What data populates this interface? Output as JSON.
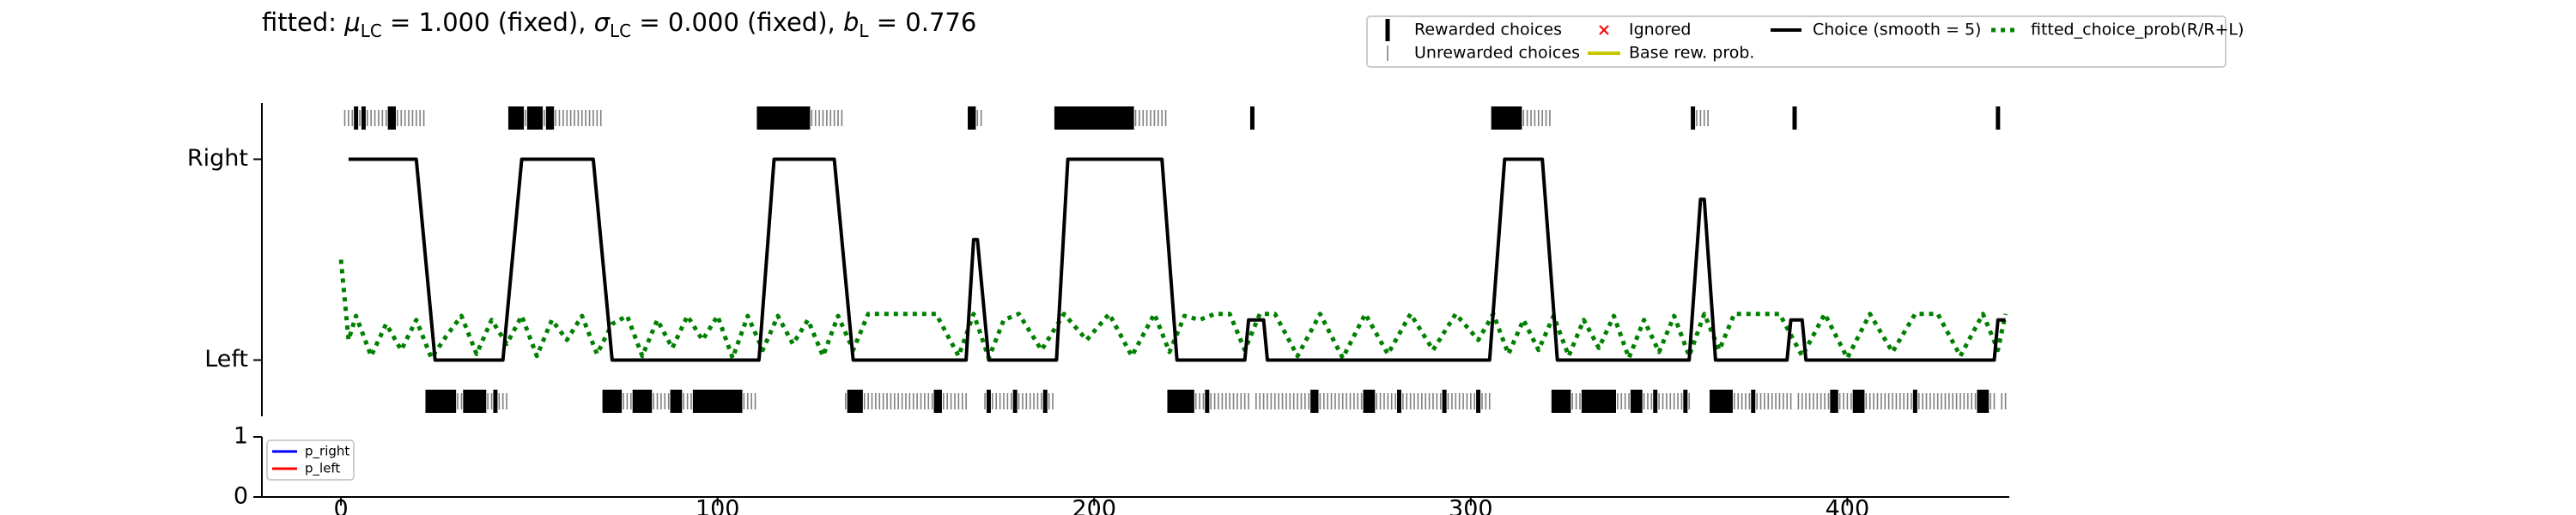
{
  "chart_data": [
    {
      "type": "choice-history",
      "title_parts": [
        "fitted: ",
        "μ",
        "LC",
        " = 1.000 (fixed), ",
        "σ",
        "LC",
        " = 0.000 (fixed), ",
        "b",
        "L",
        " = 0.776"
      ],
      "xlim": [
        -21,
        443
      ],
      "ylim": [
        -0.28,
        1.28
      ],
      "yticks": [
        {
          "value": 0,
          "label": "Left"
        },
        {
          "value": 1,
          "label": "Right"
        }
      ],
      "legend": "top",
      "series": [
        {
          "name": "Rewarded choices",
          "color": "#000000",
          "right": [
            4,
            6,
            13,
            14,
            45,
            46,
            47,
            48,
            50,
            51,
            52,
            53,
            55,
            56,
            111,
            112,
            113,
            114,
            115,
            116,
            117,
            118,
            119,
            120,
            121,
            122,
            123,
            124,
            167,
            168,
            190,
            191,
            192,
            193,
            194,
            195,
            196,
            197,
            198,
            199,
            200,
            201,
            202,
            203,
            204,
            205,
            206,
            207,
            208,
            209,
            210,
            242,
            306,
            307,
            308,
            309,
            310,
            311,
            312,
            313,
            359,
            386,
            440
          ],
          "left": [
            23,
            24,
            25,
            26,
            27,
            28,
            29,
            30,
            33,
            34,
            35,
            36,
            37,
            38,
            41,
            70,
            71,
            72,
            73,
            74,
            78,
            79,
            80,
            81,
            82,
            88,
            89,
            90,
            94,
            95,
            96,
            97,
            98,
            99,
            100,
            101,
            102,
            103,
            104,
            105,
            106,
            135,
            136,
            137,
            138,
            158,
            159,
            172,
            179,
            187,
            220,
            221,
            222,
            223,
            224,
            225,
            226,
            230,
            258,
            259,
            272,
            273,
            274,
            281,
            293,
            302,
            322,
            323,
            324,
            325,
            326,
            330,
            331,
            332,
            333,
            334,
            335,
            336,
            337,
            338,
            343,
            344,
            345,
            349,
            357,
            364,
            365,
            366,
            367,
            368,
            369,
            375,
            396,
            397,
            402,
            403,
            404,
            418,
            435,
            436,
            437
          ]
        },
        {
          "name": "Unrewarded choices",
          "color": "#808080",
          "right": [
            1,
            2,
            3,
            5,
            7,
            8,
            9,
            10,
            11,
            12,
            15,
            16,
            17,
            18,
            19,
            20,
            21,
            22,
            49,
            54,
            57,
            58,
            59,
            60,
            61,
            62,
            63,
            64,
            65,
            66,
            67,
            68,
            69,
            125,
            126,
            127,
            128,
            129,
            130,
            131,
            132,
            133,
            169,
            170,
            211,
            212,
            213,
            214,
            215,
            216,
            217,
            218,
            219,
            314,
            315,
            316,
            317,
            318,
            319,
            320,
            321,
            360,
            361,
            362,
            363
          ],
          "left": [
            31,
            32,
            39,
            40,
            42,
            43,
            44,
            75,
            76,
            77,
            83,
            84,
            85,
            86,
            87,
            91,
            92,
            93,
            107,
            108,
            109,
            110,
            134,
            139,
            140,
            141,
            142,
            143,
            144,
            145,
            146,
            147,
            148,
            149,
            150,
            151,
            152,
            153,
            154,
            155,
            156,
            157,
            160,
            161,
            162,
            163,
            164,
            165,
            166,
            171,
            173,
            174,
            175,
            176,
            177,
            178,
            180,
            181,
            182,
            183,
            184,
            185,
            186,
            188,
            189,
            227,
            228,
            229,
            231,
            232,
            233,
            234,
            235,
            236,
            237,
            238,
            239,
            240,
            241,
            243,
            244,
            245,
            246,
            247,
            248,
            249,
            250,
            251,
            252,
            253,
            254,
            255,
            256,
            257,
            260,
            261,
            262,
            263,
            264,
            265,
            266,
            267,
            268,
            269,
            270,
            271,
            275,
            276,
            277,
            278,
            279,
            280,
            282,
            283,
            284,
            285,
            286,
            287,
            288,
            289,
            290,
            291,
            292,
            294,
            295,
            296,
            297,
            298,
            299,
            300,
            301,
            303,
            304,
            305,
            327,
            328,
            329,
            339,
            340,
            341,
            342,
            346,
            347,
            348,
            350,
            351,
            352,
            353,
            354,
            355,
            356,
            358,
            370,
            371,
            372,
            373,
            374,
            376,
            377,
            378,
            379,
            380,
            381,
            382,
            383,
            384,
            385,
            387,
            388,
            389,
            390,
            391,
            392,
            393,
            394,
            395,
            398,
            399,
            400,
            401,
            405,
            406,
            407,
            408,
            409,
            410,
            411,
            412,
            413,
            414,
            415,
            416,
            417,
            419,
            420,
            421,
            422,
            423,
            424,
            425,
            426,
            427,
            428,
            429,
            430,
            431,
            432,
            433,
            434,
            438,
            439,
            441,
            442
          ]
        },
        {
          "name": "Ignored",
          "color": "#ff0000"
        },
        {
          "name": "Base rew. prob.",
          "color": "#c8c800"
        },
        {
          "name": "Choice (smooth = 5)",
          "color": "#000000",
          "x": [
            2,
            20,
            25,
            43,
            48,
            67,
            72,
            111,
            115,
            131,
            136,
            166,
            168,
            169,
            170,
            172,
            190,
            193,
            218,
            222,
            240,
            241,
            245,
            246,
            305,
            309,
            319,
            323,
            358,
            361,
            362,
            365,
            384,
            385,
            388,
            389,
            439,
            440,
            442
          ],
          "values": [
            1,
            1,
            0,
            0,
            1,
            1,
            0,
            0,
            1,
            1,
            0,
            0,
            0.6,
            0.6,
            0.4,
            0,
            0,
            1,
            1,
            0,
            0,
            0.2,
            0.2,
            0,
            0,
            1,
            1,
            0,
            0,
            0.8,
            0.8,
            0,
            0,
            0.2,
            0.2,
            0,
            0,
            0.2,
            0.2
          ]
        },
        {
          "name": "fitted_choice_prob(R/R+L)",
          "color": "#008000",
          "x": [
            0,
            2,
            4,
            8,
            12,
            16,
            20,
            24,
            28,
            32,
            36,
            40,
            44,
            48,
            52,
            56,
            60,
            64,
            68,
            72,
            76,
            80,
            84,
            88,
            92,
            96,
            100,
            104,
            108,
            112,
            116,
            120,
            124,
            128,
            132,
            136,
            140,
            146,
            152,
            158,
            164,
            168,
            172,
            176,
            180,
            186,
            192,
            198,
            204,
            210,
            216,
            220,
            224,
            228,
            232,
            236,
            240,
            244,
            248,
            254,
            260,
            266,
            272,
            278,
            284,
            290,
            296,
            302,
            306,
            310,
            314,
            318,
            322,
            326,
            330,
            334,
            338,
            342,
            346,
            350,
            354,
            358,
            362,
            366,
            370,
            376,
            382,
            388,
            394,
            400,
            406,
            412,
            418,
            424,
            430,
            436,
            440,
            442
          ],
          "values": [
            0.5,
            0.1,
            0.22,
            0.02,
            0.18,
            0.05,
            0.2,
            0.01,
            0.12,
            0.22,
            0.03,
            0.2,
            0.08,
            0.22,
            0.02,
            0.2,
            0.1,
            0.22,
            0.03,
            0.18,
            0.22,
            0.02,
            0.2,
            0.06,
            0.22,
            0.1,
            0.22,
            0.01,
            0.22,
            0.05,
            0.22,
            0.08,
            0.2,
            0.02,
            0.22,
            0.05,
            0.23,
            0.23,
            0.23,
            0.23,
            0.02,
            0.23,
            0.01,
            0.2,
            0.23,
            0.05,
            0.23,
            0.1,
            0.23,
            0.02,
            0.23,
            0.04,
            0.22,
            0.2,
            0.23,
            0.23,
            0.05,
            0.23,
            0.23,
            0.02,
            0.23,
            0.01,
            0.23,
            0.03,
            0.23,
            0.05,
            0.23,
            0.1,
            0.23,
            0.03,
            0.2,
            0.05,
            0.22,
            0.02,
            0.2,
            0.06,
            0.22,
            0.01,
            0.2,
            0.04,
            0.22,
            0.02,
            0.23,
            0.05,
            0.23,
            0.23,
            0.23,
            0.02,
            0.23,
            0.01,
            0.23,
            0.04,
            0.23,
            0.23,
            0.02,
            0.23,
            0.05,
            0.23
          ]
        }
      ]
    },
    {
      "type": "line",
      "xlim": [
        -21,
        443
      ],
      "xticks": [
        0,
        100,
        200,
        300,
        400
      ],
      "ylim": [
        0,
        1
      ],
      "yticks": [
        0,
        1
      ],
      "legend": "upper left",
      "series": [
        {
          "name": "p_right",
          "color": "#0000ff"
        },
        {
          "name": "p_left",
          "color": "#ff0000"
        }
      ]
    }
  ]
}
